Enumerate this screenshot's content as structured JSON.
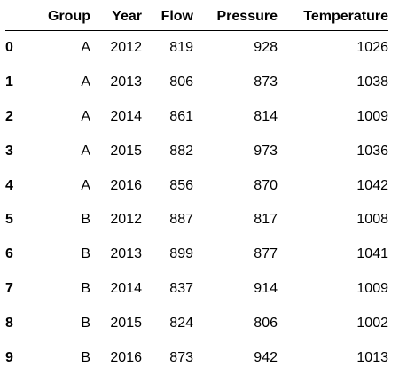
{
  "table": {
    "columns": [
      "",
      "Group",
      "Year",
      "Flow",
      "Pressure",
      "Temperature"
    ],
    "rows": [
      {
        "index": "0",
        "group": "A",
        "year": "2012",
        "flow": "819",
        "pressure": "928",
        "temperature": "1026"
      },
      {
        "index": "1",
        "group": "A",
        "year": "2013",
        "flow": "806",
        "pressure": "873",
        "temperature": "1038"
      },
      {
        "index": "2",
        "group": "A",
        "year": "2014",
        "flow": "861",
        "pressure": "814",
        "temperature": "1009"
      },
      {
        "index": "3",
        "group": "A",
        "year": "2015",
        "flow": "882",
        "pressure": "973",
        "temperature": "1036"
      },
      {
        "index": "4",
        "group": "A",
        "year": "2016",
        "flow": "856",
        "pressure": "870",
        "temperature": "1042"
      },
      {
        "index": "5",
        "group": "B",
        "year": "2012",
        "flow": "887",
        "pressure": "817",
        "temperature": "1008"
      },
      {
        "index": "6",
        "group": "B",
        "year": "2013",
        "flow": "899",
        "pressure": "877",
        "temperature": "1041"
      },
      {
        "index": "7",
        "group": "B",
        "year": "2014",
        "flow": "837",
        "pressure": "914",
        "temperature": "1009"
      },
      {
        "index": "8",
        "group": "B",
        "year": "2015",
        "flow": "824",
        "pressure": "806",
        "temperature": "1002"
      },
      {
        "index": "9",
        "group": "B",
        "year": "2016",
        "flow": "873",
        "pressure": "942",
        "temperature": "1013"
      }
    ]
  }
}
